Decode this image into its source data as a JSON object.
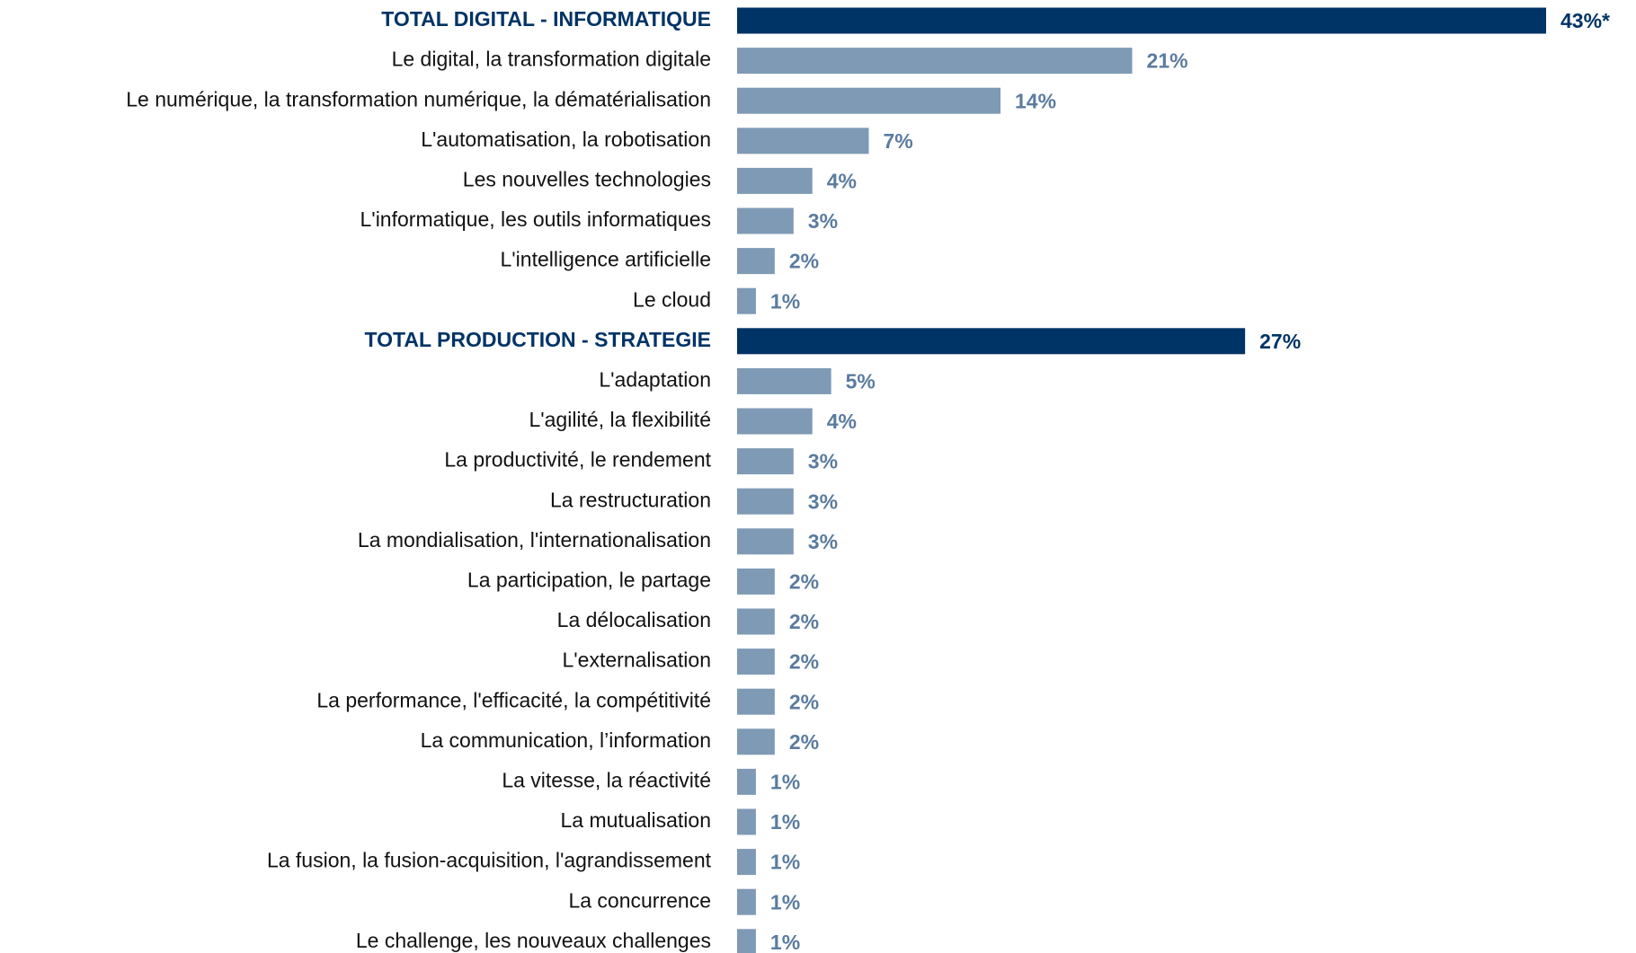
{
  "chart_data": {
    "type": "barh",
    "categories": [
      "TOTAL DIGITAL - INFORMATIQUE",
      "Le digital, la transformation digitale",
      "Le numérique, la transformation numérique, la dématérialisation",
      "L'automatisation, la robotisation",
      "Les nouvelles technologies",
      "L'informatique, les outils informatiques",
      "L'intelligence artificielle",
      "Le cloud",
      "TOTAL PRODUCTION - STRATEGIE",
      "L'adaptation",
      "L'agilité, la flexibilité",
      "La productivité, le rendement",
      "La restructuration",
      "La mondialisation, l'internationalisation",
      "La participation, le partage",
      "La délocalisation",
      "L'externalisation",
      "La performance, l'efficacité, la compétitivité",
      "La communication, l’information",
      "La vitesse, la réactivité",
      "La mutualisation",
      "La fusion, la fusion-acquisition, l'agrandissement",
      "La concurrence",
      "Le challenge, les nouveaux challenges"
    ],
    "values": [
      43,
      21,
      14,
      7,
      4,
      3,
      2,
      1,
      27,
      5,
      4,
      3,
      3,
      3,
      2,
      2,
      2,
      2,
      2,
      1,
      1,
      1,
      1,
      1
    ],
    "value_labels": [
      "43%*",
      "21%",
      "14%",
      "7%",
      "4%",
      "3%",
      "2%",
      "1%",
      "27%",
      "5%",
      "4%",
      "3%",
      "3%",
      "3%",
      "2%",
      "2%",
      "2%",
      "2%",
      "2%",
      "1%",
      "1%",
      "1%",
      "1%",
      "1%"
    ],
    "colors": [
      "#003366",
      "#7f9ab5",
      "#7f9ab5",
      "#7f9ab5",
      "#7f9ab5",
      "#7f9ab5",
      "#7f9ab5",
      "#7f9ab5",
      "#003366",
      "#7f9ab5",
      "#7f9ab5",
      "#7f9ab5",
      "#7f9ab5",
      "#7f9ab5",
      "#7f9ab5",
      "#7f9ab5",
      "#7f9ab5",
      "#7f9ab5",
      "#7f9ab5",
      "#7f9ab5",
      "#7f9ab5",
      "#7f9ab5",
      "#7f9ab5",
      "#7f9ab5"
    ]
  }
}
